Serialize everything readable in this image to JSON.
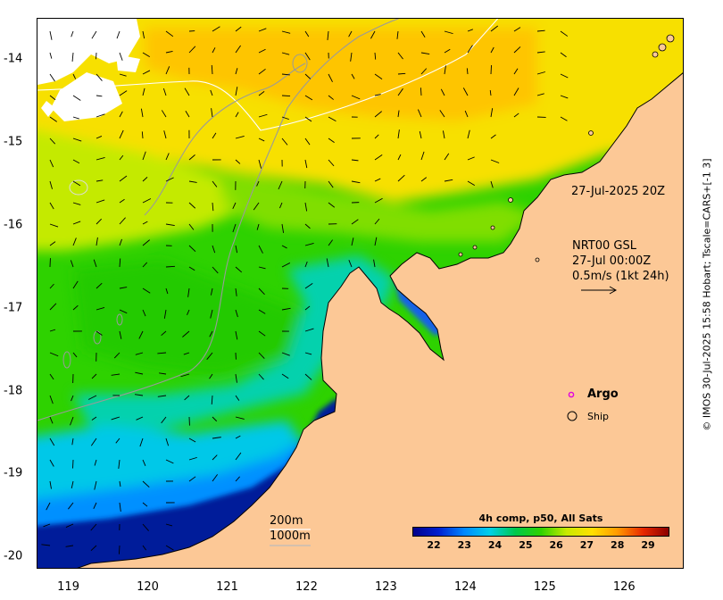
{
  "map": {
    "x_ticks": [
      "119",
      "120",
      "121",
      "122",
      "123",
      "124",
      "125",
      "126"
    ],
    "y_ticks": [
      "-14",
      "-15",
      "-16",
      "-17",
      "-18",
      "-19",
      "-20"
    ],
    "lon_range": [
      118.6,
      126.75
    ],
    "lat_range": [
      -20.15,
      -13.5
    ],
    "projection": "equirectangular",
    "land_color": "#fcc896",
    "cloud_color": "#ffffff"
  },
  "annotations": {
    "composite_time": "27-Jul-2025 20Z",
    "current_product": "NRT00 GSL",
    "current_time": "27-Jul 00:00Z",
    "current_scale": "0.5m/s (1kt 24h)",
    "contour_200": "200m",
    "contour_1000": "1000m",
    "copyright": "© IMOS 30-Jul-2025 15:58 Hobart; Tscale=CARS+[-1 3]"
  },
  "legend": {
    "argo_label": "Argo",
    "argo_color": "#e000e0",
    "ship_label": "Ship"
  },
  "colorbar": {
    "title": "4h comp, p50, All Sats",
    "ticks": [
      "22",
      "23",
      "24",
      "25",
      "26",
      "27",
      "28",
      "29"
    ],
    "range": [
      21.3,
      29.7
    ],
    "colors": [
      "#00008c",
      "#0020d0",
      "#0088ff",
      "#00d0e8",
      "#00c84c",
      "#2ed200",
      "#c8ea00",
      "#ffe000",
      "#ff9a00",
      "#e82800",
      "#8c0000"
    ]
  }
}
